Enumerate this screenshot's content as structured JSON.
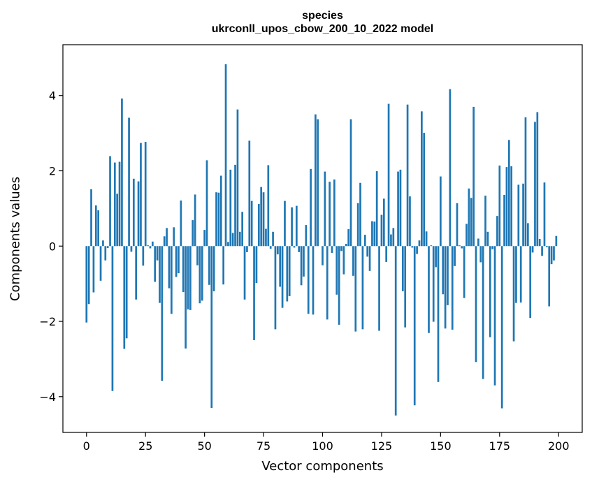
{
  "chart_data": {
    "type": "bar",
    "title_line1": "species",
    "title_line2": "ukrconll_upos_cbow_200_10_2022 model",
    "xlabel": "Vector components",
    "ylabel": "Components values",
    "xlim": [
      -10,
      210
    ],
    "ylim": [
      -4.95,
      5.35
    ],
    "xticks": [
      0,
      25,
      50,
      75,
      100,
      125,
      150,
      175,
      200
    ],
    "yticks": [
      -4,
      -2,
      0,
      2,
      4
    ],
    "ytick_labels": [
      "−4",
      "−2",
      "0",
      "2",
      "4"
    ],
    "bar_color": "#1f77b4",
    "grid": false,
    "x": [
      0,
      1,
      2,
      3,
      4,
      5,
      6,
      7,
      8,
      9,
      10,
      11,
      12,
      13,
      14,
      15,
      16,
      17,
      18,
      19,
      20,
      21,
      22,
      23,
      24,
      25,
      26,
      27,
      28,
      29,
      30,
      31,
      32,
      33,
      34,
      35,
      36,
      37,
      38,
      39,
      40,
      41,
      42,
      43,
      44,
      45,
      46,
      47,
      48,
      49,
      50,
      51,
      52,
      53,
      54,
      55,
      56,
      57,
      58,
      59,
      60,
      61,
      62,
      63,
      64,
      65,
      66,
      67,
      68,
      69,
      70,
      71,
      72,
      73,
      74,
      75,
      76,
      77,
      78,
      79,
      80,
      81,
      82,
      83,
      84,
      85,
      86,
      87,
      88,
      89,
      90,
      91,
      92,
      93,
      94,
      95,
      96,
      97,
      98,
      99,
      100,
      101,
      102,
      103,
      104,
      105,
      106,
      107,
      108,
      109,
      110,
      111,
      112,
      113,
      114,
      115,
      116,
      117,
      118,
      119,
      120,
      121,
      122,
      123,
      124,
      125,
      126,
      127,
      128,
      129,
      130,
      131,
      132,
      133,
      134,
      135,
      136,
      137,
      138,
      139,
      140,
      141,
      142,
      143,
      144,
      145,
      146,
      147,
      148,
      149,
      150,
      151,
      152,
      153,
      154,
      155,
      156,
      157,
      158,
      159,
      160,
      161,
      162,
      163,
      164,
      165,
      166,
      167,
      168,
      169,
      170,
      171,
      172,
      173,
      174,
      175,
      176,
      177,
      178,
      179,
      180,
      181,
      182,
      183,
      184,
      185,
      186,
      187,
      188,
      189,
      190,
      191,
      192,
      193,
      194,
      195,
      196,
      197,
      198,
      199
    ],
    "values": [
      -2.03,
      -1.54,
      1.51,
      -1.23,
      1.08,
      0.95,
      -0.92,
      0.15,
      -0.38,
      -0.05,
      2.39,
      -3.85,
      2.22,
      1.39,
      2.24,
      3.92,
      -2.73,
      -2.45,
      3.41,
      -0.15,
      1.79,
      -1.42,
      1.72,
      2.74,
      -0.52,
      2.77,
      0.02,
      -0.06,
      0.12,
      -0.95,
      -0.38,
      -1.51,
      -3.58,
      0.26,
      0.48,
      -1.12,
      -1.8,
      0.5,
      -0.82,
      -0.72,
      1.21,
      -1.22,
      -2.72,
      -1.68,
      -1.7,
      0.69,
      1.37,
      -0.51,
      -1.52,
      -1.45,
      0.43,
      2.28,
      -1.03,
      -4.3,
      -1.2,
      1.43,
      1.42,
      1.87,
      -1.02,
      4.83,
      0.11,
      2.03,
      0.35,
      2.16,
      3.63,
      0.38,
      0.91,
      -1.42,
      -0.16,
      2.8,
      1.2,
      -2.5,
      -0.98,
      1.12,
      1.57,
      1.43,
      0.46,
      2.15,
      -0.07,
      0.38,
      -2.21,
      -0.22,
      -1.08,
      -1.64,
      1.2,
      -1.47,
      -1.33,
      1.03,
      -0.04,
      1.07,
      -0.16,
      -1.04,
      -0.81,
      0.56,
      -1.8,
      2.05,
      -1.82,
      3.5,
      3.37,
      0.0,
      -0.51,
      1.98,
      -1.95,
      1.71,
      -0.18,
      1.77,
      -1.29,
      -2.09,
      -0.13,
      -0.75,
      0.06,
      0.45,
      3.37,
      -0.79,
      -2.27,
      1.14,
      1.68,
      -2.21,
      0.3,
      -0.28,
      -0.66,
      0.66,
      0.65,
      1.99,
      -2.25,
      0.83,
      1.26,
      -0.42,
      3.78,
      0.31,
      0.48,
      -4.5,
      1.98,
      2.03,
      -1.2,
      -2.16,
      3.76,
      1.32,
      -0.04,
      -4.23,
      -0.21,
      0.15,
      3.58,
      3.01,
      0.39,
      -2.31,
      0.02,
      -2.01,
      -0.56,
      -3.61,
      1.85,
      -1.28,
      -2.19,
      -1.57,
      4.17,
      -2.22,
      -0.53,
      1.14,
      0.02,
      -0.06,
      -1.38,
      0.59,
      1.53,
      1.28,
      3.7,
      -3.08,
      0.2,
      -0.43,
      -3.53,
      1.34,
      0.38,
      -2.42,
      -0.08,
      -3.7,
      0.8,
      2.14,
      -4.31,
      1.36,
      2.1,
      2.82,
      2.12,
      -2.53,
      -1.51,
      1.63,
      -1.5,
      1.66,
      3.42,
      0.61,
      -1.91,
      -0.17,
      3.3,
      3.56,
      0.19,
      -0.26,
      1.69,
      -0.03,
      -1.6,
      -0.48,
      -0.38,
      0.27
    ]
  }
}
